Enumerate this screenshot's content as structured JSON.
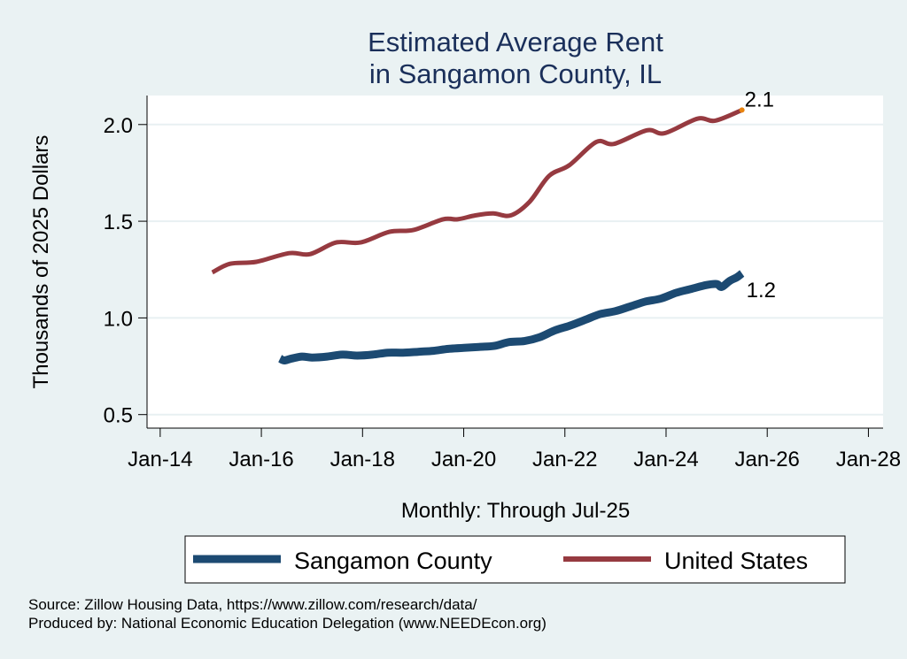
{
  "chart_data": {
    "type": "line",
    "title": [
      "Estimated Average Rent",
      "in Sangamon County, IL"
    ],
    "xlabel": "Monthly: Through Jul-25",
    "ylabel": "Thousands of 2025 Dollars",
    "x_ticks": [
      {
        "value": 2014,
        "label": "Jan-14"
      },
      {
        "value": 2016,
        "label": "Jan-16"
      },
      {
        "value": 2018,
        "label": "Jan-18"
      },
      {
        "value": 2020,
        "label": "Jan-20"
      },
      {
        "value": 2022,
        "label": "Jan-22"
      },
      {
        "value": 2024,
        "label": "Jan-24"
      },
      {
        "value": 2026,
        "label": "Jan-26"
      },
      {
        "value": 2028,
        "label": "Jan-28"
      }
    ],
    "y_ticks": [
      {
        "value": 0.5,
        "label": "0.5"
      },
      {
        "value": 1.0,
        "label": "1.0"
      },
      {
        "value": 1.5,
        "label": "1.5"
      },
      {
        "value": 2.0,
        "label": "2.0"
      }
    ],
    "xlim": [
      2013.74,
      2028.29
    ],
    "ylim": [
      0.43,
      2.15
    ],
    "grid": true,
    "legend_position": "bottom",
    "series": [
      {
        "name": "Sangamon County",
        "color": "#1c4a72",
        "end_label": "1.2",
        "points": [
          [
            2016.37,
            0.79
          ],
          [
            2016.45,
            0.78
          ],
          [
            2016.6,
            0.79
          ],
          [
            2016.8,
            0.8
          ],
          [
            2017.0,
            0.795
          ],
          [
            2017.3,
            0.8
          ],
          [
            2017.6,
            0.81
          ],
          [
            2017.9,
            0.805
          ],
          [
            2018.2,
            0.81
          ],
          [
            2018.5,
            0.82
          ],
          [
            2018.8,
            0.82
          ],
          [
            2019.1,
            0.825
          ],
          [
            2019.4,
            0.83
          ],
          [
            2019.7,
            0.84
          ],
          [
            2020.0,
            0.845
          ],
          [
            2020.3,
            0.85
          ],
          [
            2020.6,
            0.855
          ],
          [
            2020.9,
            0.875
          ],
          [
            2021.2,
            0.88
          ],
          [
            2021.5,
            0.9
          ],
          [
            2021.8,
            0.935
          ],
          [
            2022.1,
            0.96
          ],
          [
            2022.4,
            0.99
          ],
          [
            2022.7,
            1.02
          ],
          [
            2023.0,
            1.035
          ],
          [
            2023.3,
            1.06
          ],
          [
            2023.6,
            1.085
          ],
          [
            2023.9,
            1.1
          ],
          [
            2024.2,
            1.13
          ],
          [
            2024.5,
            1.15
          ],
          [
            2024.8,
            1.17
          ],
          [
            2025.0,
            1.175
          ],
          [
            2025.1,
            1.16
          ],
          [
            2025.25,
            1.19
          ],
          [
            2025.4,
            1.21
          ],
          [
            2025.5,
            1.23
          ]
        ]
      },
      {
        "name": "United States",
        "color": "#963a40",
        "end_label": "2.1",
        "end_marker_color": "#e8830e",
        "points": [
          [
            2015.03,
            1.235
          ],
          [
            2015.38,
            1.28
          ],
          [
            2015.9,
            1.29
          ],
          [
            2016.55,
            1.335
          ],
          [
            2016.96,
            1.33
          ],
          [
            2017.48,
            1.39
          ],
          [
            2017.96,
            1.39
          ],
          [
            2018.53,
            1.445
          ],
          [
            2019.01,
            1.455
          ],
          [
            2019.59,
            1.51
          ],
          [
            2019.88,
            1.51
          ],
          [
            2020.23,
            1.53
          ],
          [
            2020.58,
            1.54
          ],
          [
            2020.93,
            1.53
          ],
          [
            2021.3,
            1.6
          ],
          [
            2021.69,
            1.735
          ],
          [
            2022.09,
            1.79
          ],
          [
            2022.62,
            1.91
          ],
          [
            2022.97,
            1.9
          ],
          [
            2023.62,
            1.97
          ],
          [
            2023.97,
            1.955
          ],
          [
            2024.62,
            2.03
          ],
          [
            2024.97,
            2.02
          ],
          [
            2025.5,
            2.075
          ]
        ]
      }
    ]
  },
  "legend": {
    "items": [
      {
        "label": "Sangamon County",
        "color": "#1c4a72"
      },
      {
        "label": "United States",
        "color": "#963a40"
      }
    ]
  },
  "notes": {
    "source": "Source: Zillow Housing Data, https://www.zillow.com/research/data/",
    "producer": "Produced by: National Economic Education Delegation (www.NEEDEcon.org)"
  }
}
